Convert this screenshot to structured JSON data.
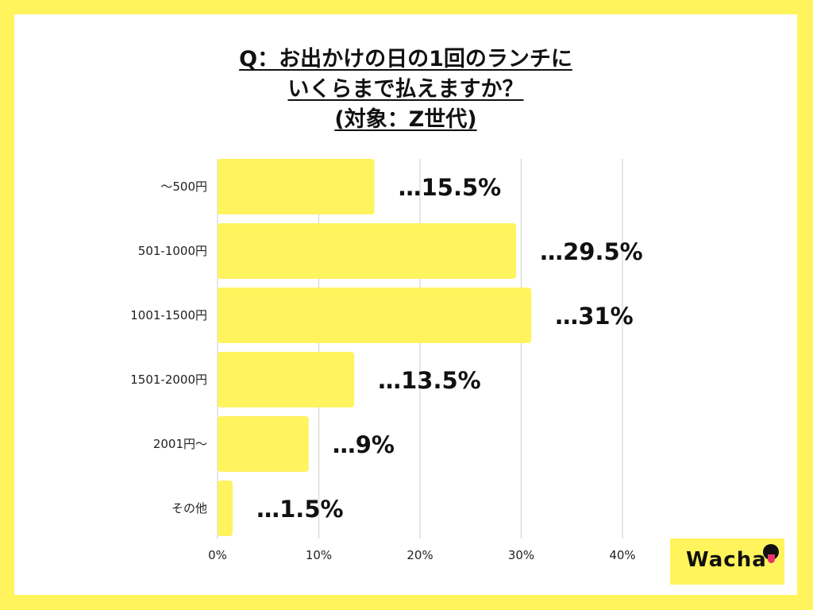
{
  "title_lines": [
    "Q：お出かけの日の1回のランチに",
    "いくらまで払えますか？",
    "(対象：Z世代)"
  ],
  "logo_text": "Wacha",
  "colors": {
    "background": "#FFF45C",
    "bar": "#FFF35E",
    "grid": "#DDDDDD",
    "text": "#111111"
  },
  "chart_data": {
    "type": "bar",
    "orientation": "horizontal",
    "categories": [
      "〜500円",
      "501-1000円",
      "1001-1500円",
      "1501-2000円",
      "2001円〜",
      "その他"
    ],
    "values": [
      15.5,
      29.5,
      31,
      13.5,
      9,
      1.5
    ],
    "value_labels": [
      "…15.5%",
      "…29.5%",
      "…31%",
      "…13.5%",
      "…9%",
      "…1.5%"
    ],
    "x_ticks": [
      "0%",
      "10%",
      "20%",
      "30%",
      "40%"
    ],
    "xlim": [
      0,
      40
    ],
    "grid": true,
    "legend": false
  }
}
